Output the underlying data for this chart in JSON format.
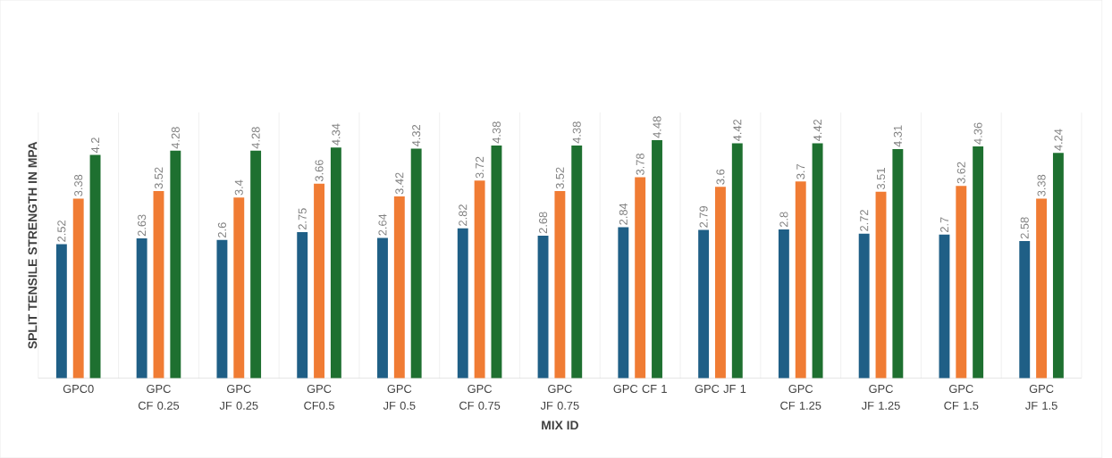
{
  "chart_data": {
    "type": "bar",
    "xlabel": "MIX ID",
    "ylabel": "SPLIT TENSILE STRENGTH IN MPA",
    "categories": [
      "GPC0",
      "GPC CF 0.25",
      "GPC JF 0.25",
      "GPC CF0.5",
      "GPC JF 0.5",
      "GPC CF 0.75",
      "GPC JF 0.75",
      "GPC CF 1",
      "GPC JF 1",
      "GPC CF 1.25",
      "GPC JF 1.25",
      "GPC CF 1.5",
      "GPC JF 1.5"
    ],
    "series": [
      {
        "color": "#1f5f86",
        "values": [
          2.52,
          2.63,
          2.6,
          2.75,
          2.64,
          2.82,
          2.68,
          2.84,
          2.79,
          2.8,
          2.72,
          2.7,
          2.58
        ]
      },
      {
        "color": "#f07c34",
        "values": [
          3.38,
          3.52,
          3.4,
          3.66,
          3.42,
          3.72,
          3.52,
          3.78,
          3.6,
          3.7,
          3.51,
          3.62,
          3.38
        ]
      },
      {
        "color": "#1e7030",
        "values": [
          4.2,
          4.28,
          4.28,
          4.34,
          4.32,
          4.38,
          4.38,
          4.48,
          4.42,
          4.42,
          4.31,
          4.36,
          4.24
        ]
      }
    ],
    "ylim": [
      0,
      5
    ],
    "tick_labels": "x",
    "grid": "x",
    "data_labels": true
  }
}
